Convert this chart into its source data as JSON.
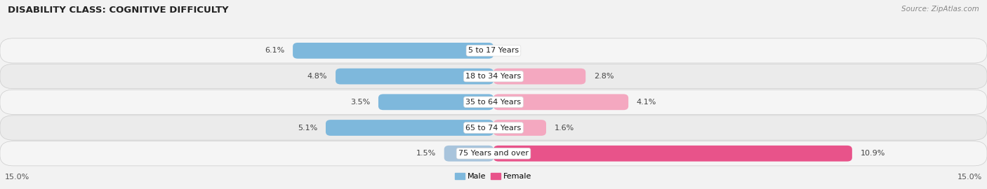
{
  "title": "DISABILITY CLASS: COGNITIVE DIFFICULTY",
  "source": "Source: ZipAtlas.com",
  "categories": [
    "5 to 17 Years",
    "18 to 34 Years",
    "35 to 64 Years",
    "65 to 74 Years",
    "75 Years and over"
  ],
  "male_values": [
    6.1,
    4.8,
    3.5,
    5.1,
    1.5
  ],
  "female_values": [
    0.0,
    2.8,
    4.1,
    1.6,
    10.9
  ],
  "male_colors": [
    "#7eb8dc",
    "#7eb8dc",
    "#7eb8dc",
    "#7eb8dc",
    "#a8c4dc"
  ],
  "female_colors": [
    "#f4a8c0",
    "#f4a8c0",
    "#f4a8c0",
    "#f4a8c0",
    "#e8538a"
  ],
  "male_legend_color": "#7eb8dc",
  "female_legend_color": "#e8538a",
  "axis_max": 15.0,
  "bar_height": 0.62,
  "background_color": "#f2f2f2",
  "row_colors": [
    "#f5f5f5",
    "#ebebeb",
    "#f5f5f5",
    "#ebebeb",
    "#f5f5f5"
  ],
  "title_fontsize": 9.5,
  "source_fontsize": 7.5,
  "label_fontsize": 8.0,
  "value_fontsize": 8.0,
  "category_fontsize": 8.0
}
